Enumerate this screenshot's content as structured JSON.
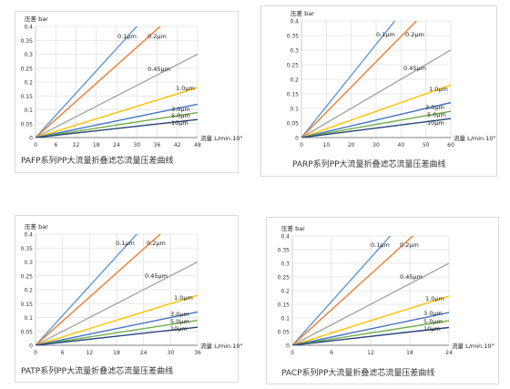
{
  "chart_data": [
    {
      "type": "line",
      "ylabel": "压差 bar",
      "xlabel": "流量 L/min.10\"",
      "ylim": [
        0,
        0.4
      ],
      "yticks": [
        "0",
        "0.05",
        "0.1",
        "0.15",
        "0.2",
        "0.25",
        "0.3",
        "0.35",
        "0.4"
      ],
      "xlim": [
        0,
        48
      ],
      "xticks": [
        "0",
        "6",
        "12",
        "18",
        "24",
        "30",
        "36",
        "42",
        "48"
      ],
      "series": [
        {
          "name": "0.1μm",
          "x": [
            0,
            48
          ],
          "y": [
            0,
            0.64
          ]
        },
        {
          "name": "0.2μm",
          "x": [
            0,
            48
          ],
          "y": [
            0,
            0.52
          ]
        },
        {
          "name": "0.45μm",
          "x": [
            0,
            48
          ],
          "y": [
            0,
            0.3
          ]
        },
        {
          "name": "1.0μm",
          "x": [
            0,
            48
          ],
          "y": [
            0,
            0.18
          ]
        },
        {
          "name": "3.0μm",
          "x": [
            0,
            48
          ],
          "y": [
            0,
            0.12
          ]
        },
        {
          "name": "5.0μm",
          "x": [
            0,
            48
          ],
          "y": [
            0,
            0.09
          ]
        },
        {
          "name": "10μm",
          "x": [
            0,
            48
          ],
          "y": [
            0,
            0.065
          ]
        }
      ],
      "caption": "PAFP系列PP大流量折叠滤芯流量压差曲线",
      "grid": true
    },
    {
      "type": "line",
      "ylabel": "压差 bar",
      "xlabel": "流量 L/min.10\"",
      "ylim": [
        0,
        0.4
      ],
      "yticks": [
        "0",
        "0.05",
        "0.1",
        "0.15",
        "0.2",
        "0.25",
        "0.3",
        "0.35",
        "0.4"
      ],
      "xlim": [
        0,
        60
      ],
      "xticks": [
        "0",
        "10",
        "20",
        "30",
        "40",
        "50",
        "60"
      ],
      "series": [
        {
          "name": "0.1μm",
          "x": [
            0,
            60
          ],
          "y": [
            0,
            0.64
          ]
        },
        {
          "name": "0.2μm",
          "x": [
            0,
            60
          ],
          "y": [
            0,
            0.52
          ]
        },
        {
          "name": "0.45μm",
          "x": [
            0,
            60
          ],
          "y": [
            0,
            0.3
          ]
        },
        {
          "name": "1.0μm",
          "x": [
            0,
            60
          ],
          "y": [
            0,
            0.18
          ]
        },
        {
          "name": "3.0μm",
          "x": [
            0,
            60
          ],
          "y": [
            0,
            0.12
          ]
        },
        {
          "name": "5.0μm",
          "x": [
            0,
            60
          ],
          "y": [
            0,
            0.09
          ]
        },
        {
          "name": "10μm",
          "x": [
            0,
            60
          ],
          "y": [
            0,
            0.065
          ]
        }
      ],
      "caption": "PARP系列PP大流量折叠滤芯流量压差曲线",
      "grid": true
    },
    {
      "type": "line",
      "ylabel": "压差 bar",
      "xlabel": "流量 L/min.10\"",
      "ylim": [
        0,
        0.4
      ],
      "yticks": [
        "0",
        "0.05",
        "0.1",
        "0.15",
        "0.2",
        "0.25",
        "0.3",
        "0.35",
        "0.4"
      ],
      "xlim": [
        0,
        36
      ],
      "xticks": [
        "0",
        "6",
        "12",
        "18",
        "24",
        "30",
        "36"
      ],
      "series": [
        {
          "name": "0.1μm",
          "x": [
            0,
            36
          ],
          "y": [
            0,
            0.64
          ]
        },
        {
          "name": "0.2μm",
          "x": [
            0,
            36
          ],
          "y": [
            0,
            0.52
          ]
        },
        {
          "name": "0.45μm",
          "x": [
            0,
            36
          ],
          "y": [
            0,
            0.3
          ]
        },
        {
          "name": "1.0μm",
          "x": [
            0,
            36
          ],
          "y": [
            0,
            0.18
          ]
        },
        {
          "name": "3.0μm",
          "x": [
            0,
            36
          ],
          "y": [
            0,
            0.12
          ]
        },
        {
          "name": "5.0μm",
          "x": [
            0,
            36
          ],
          "y": [
            0,
            0.09
          ]
        },
        {
          "name": "10μm",
          "x": [
            0,
            36
          ],
          "y": [
            0,
            0.065
          ]
        }
      ],
      "caption": "PATP系列PP大流量折叠滤芯流量压差曲线",
      "grid": true
    },
    {
      "type": "line",
      "ylabel": "压差 bar",
      "xlabel": "流量 L/min.10\"",
      "ylim": [
        0,
        0.4
      ],
      "yticks": [
        "0",
        "0.05",
        "0.1",
        "0.15",
        "0.2",
        "0.25",
        "0.3",
        "0.35",
        "0.4"
      ],
      "xlim": [
        0,
        24
      ],
      "xticks": [
        "0",
        "6",
        "12",
        "18",
        "24"
      ],
      "series": [
        {
          "name": "0.1μm",
          "x": [
            0,
            24
          ],
          "y": [
            0,
            0.64
          ]
        },
        {
          "name": "0.2μm",
          "x": [
            0,
            24
          ],
          "y": [
            0,
            0.52
          ]
        },
        {
          "name": "0.45μm",
          "x": [
            0,
            24
          ],
          "y": [
            0,
            0.3
          ]
        },
        {
          "name": "1.0μm",
          "x": [
            0,
            24
          ],
          "y": [
            0,
            0.18
          ]
        },
        {
          "name": "3.0μm",
          "x": [
            0,
            24
          ],
          "y": [
            0,
            0.12
          ]
        },
        {
          "name": "5.0μm",
          "x": [
            0,
            24
          ],
          "y": [
            0,
            0.09
          ]
        },
        {
          "name": "10μm",
          "x": [
            0,
            24
          ],
          "y": [
            0,
            0.065
          ]
        }
      ],
      "caption": "PACP系列PP大流量折叠滤芯流量压差曲线",
      "grid": true
    }
  ],
  "series_colors": [
    "#5b9bd5",
    "#ed7d31",
    "#a5a5a5",
    "#ffc000",
    "#4472c4",
    "#70ad47",
    "#264478"
  ]
}
